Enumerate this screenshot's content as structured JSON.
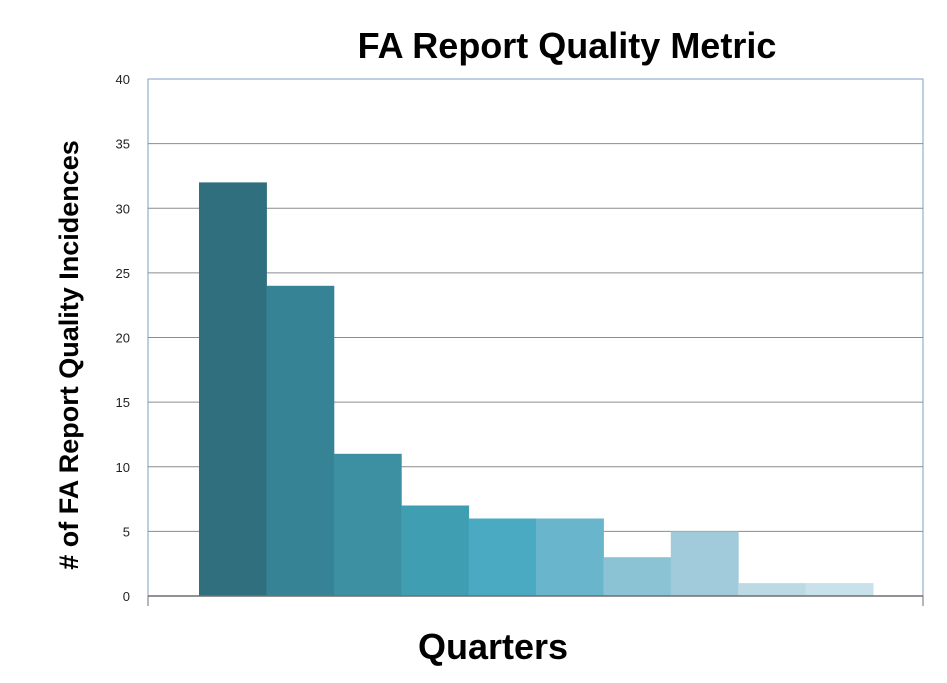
{
  "chart_data": {
    "type": "bar",
    "title": "FA Report Quality Metric",
    "xlabel": "Quarters",
    "ylabel": "# of FA Report Quality Incidences",
    "ylim": [
      0,
      40
    ],
    "yticks": [
      0,
      5,
      10,
      15,
      20,
      25,
      30,
      35,
      40
    ],
    "grid": true,
    "legend": "none",
    "categories": [
      "",
      "",
      "",
      "",
      "",
      "",
      "",
      "",
      "",
      ""
    ],
    "values": [
      32,
      24,
      11,
      7,
      6,
      6,
      3,
      5,
      1,
      1
    ],
    "colors": [
      "#2f6f7e",
      "#358394",
      "#3c90a2",
      "#409eb2",
      "#4aaac2",
      "#68b5cc",
      "#8bc3d4",
      "#a1cbda",
      "#bcdae4",
      "#c9e1ea"
    ]
  }
}
